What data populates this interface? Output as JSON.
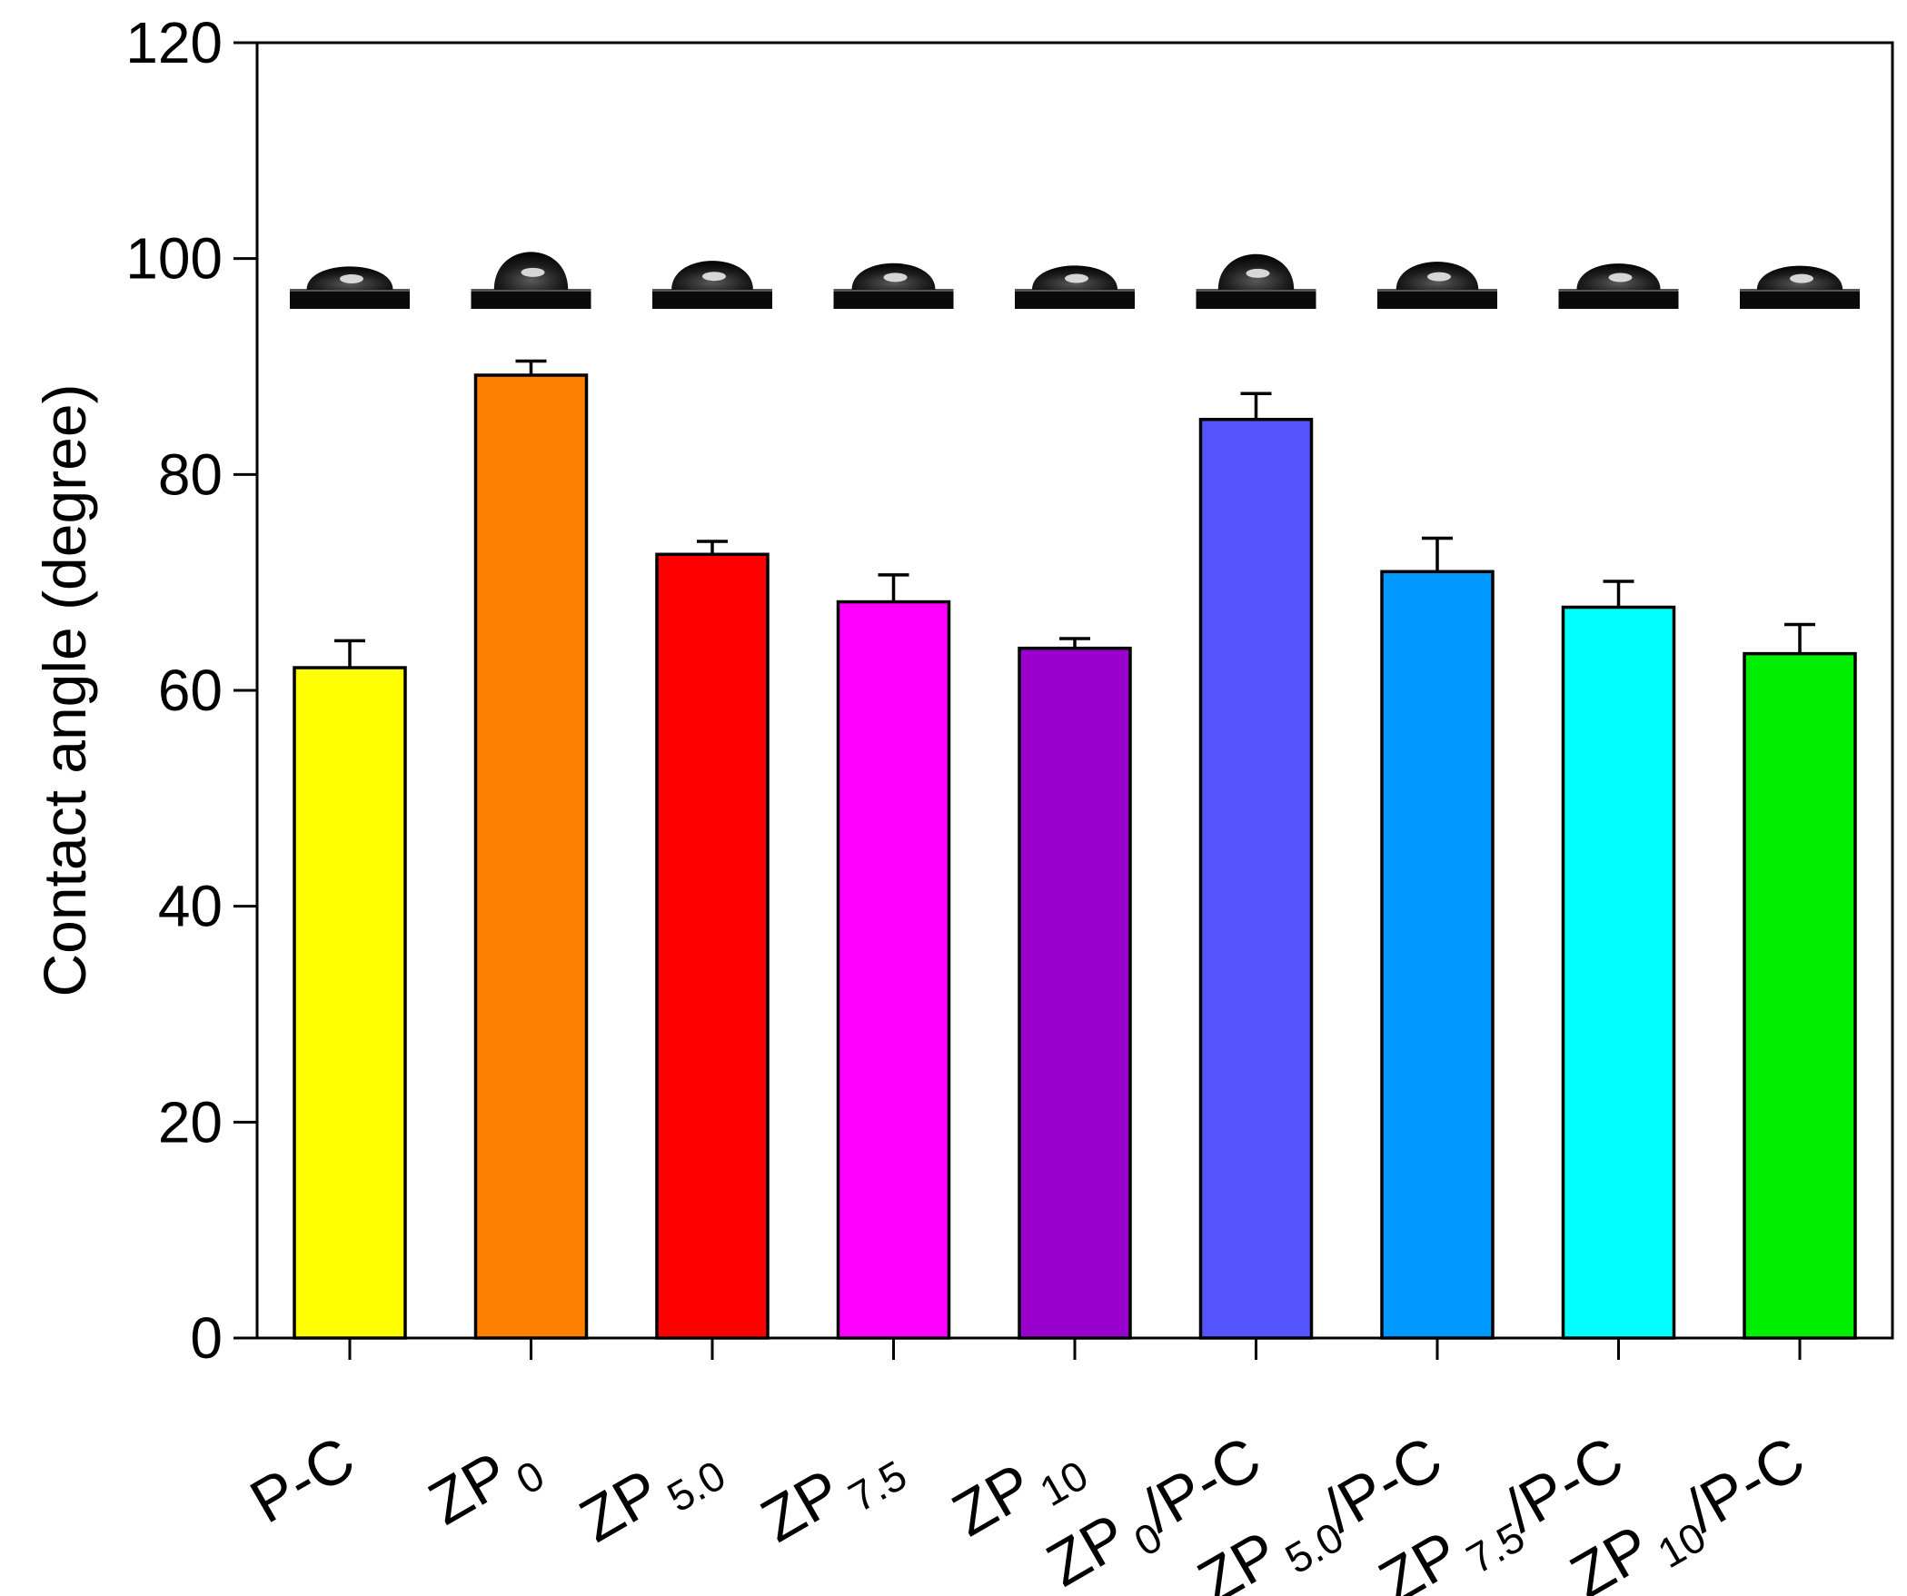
{
  "chart_data": {
    "type": "bar",
    "title": "",
    "xlabel": "",
    "ylabel": "Contact angle (degree)",
    "ylim": [
      0,
      120
    ],
    "yticks": [
      0,
      20,
      40,
      60,
      80,
      100,
      120
    ],
    "grid": false,
    "legend": "none",
    "categories": [
      {
        "main": "P-C",
        "sub": "",
        "suffix": ""
      },
      {
        "main": "ZP",
        "sub": "0",
        "suffix": ""
      },
      {
        "main": "ZP",
        "sub": "5.0",
        "suffix": ""
      },
      {
        "main": "ZP",
        "sub": "7.5",
        "suffix": ""
      },
      {
        "main": "ZP",
        "sub": "10",
        "suffix": ""
      },
      {
        "main": "ZP",
        "sub": "0",
        "suffix": "/P-C"
      },
      {
        "main": "ZP",
        "sub": "5.0",
        "suffix": "/P-C"
      },
      {
        "main": "ZP",
        "sub": "7.5",
        "suffix": "/P-C"
      },
      {
        "main": "ZP",
        "sub": "10",
        "suffix": "/P-C"
      }
    ],
    "values": [
      62.1,
      89.2,
      72.6,
      68.2,
      63.9,
      85.1,
      71.0,
      67.7,
      63.4
    ],
    "errors": [
      2.5,
      1.3,
      1.2,
      2.5,
      0.9,
      2.4,
      3.1,
      2.4,
      2.7
    ],
    "colors": [
      "#ffff00",
      "#ff8000",
      "#ff0000",
      "#ff00ff",
      "#9900cc",
      "#5555ff",
      "#0099ff",
      "#00ffff",
      "#00ee00"
    ],
    "insets": "droplet-photo"
  }
}
